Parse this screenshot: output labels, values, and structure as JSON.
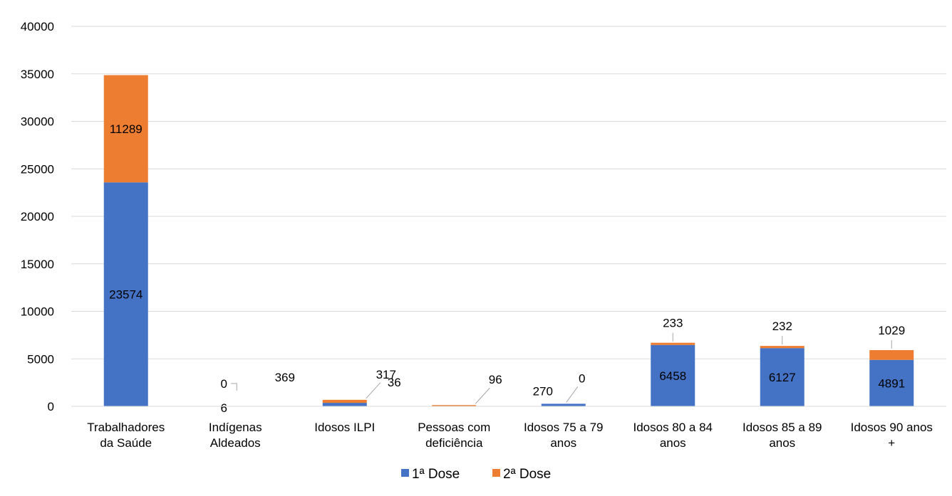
{
  "chart_data": {
    "type": "bar",
    "stacked": true,
    "categories": [
      [
        "Trabalhadores",
        "da Saúde"
      ],
      [
        "Indígenas",
        "Aldeados"
      ],
      [
        "Idosos ILPI"
      ],
      [
        "Pessoas com",
        "deficiência"
      ],
      [
        "Idosos 75 a 79",
        "anos"
      ],
      [
        "Idosos 80 a 84",
        "anos"
      ],
      [
        "Idosos 85 a 89",
        "anos"
      ],
      [
        "Idosos 90 anos",
        "+"
      ]
    ],
    "series": [
      {
        "name": "1ª Dose",
        "color": "#4472C4",
        "values": [
          23574,
          6,
          369,
          36,
          270,
          6458,
          6127,
          4891
        ]
      },
      {
        "name": "2ª Dose",
        "color": "#ED7D31",
        "values": [
          11289,
          0,
          317,
          96,
          0,
          233,
          232,
          1029
        ]
      }
    ],
    "ylim": [
      0,
      40000
    ],
    "yticks": [
      0,
      5000,
      10000,
      15000,
      20000,
      25000,
      30000,
      35000,
      40000
    ],
    "grid": true,
    "legend": "bottom",
    "title": "",
    "xlabel": "",
    "ylabel": ""
  }
}
